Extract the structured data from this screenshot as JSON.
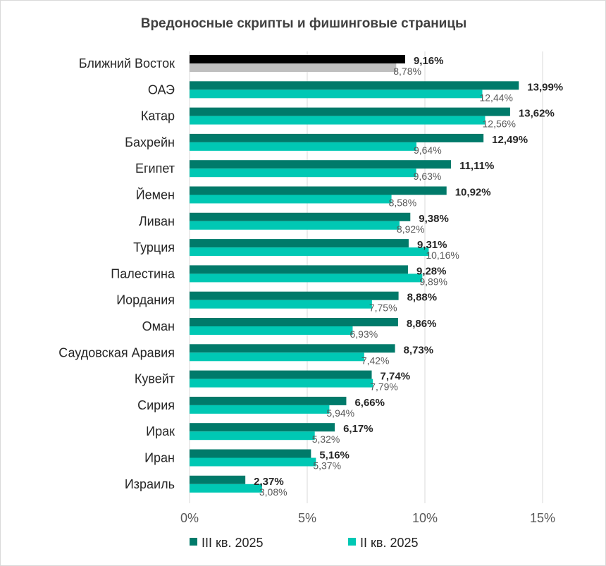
{
  "chart_data": {
    "type": "bar",
    "orientation": "horizontal",
    "title": "Вредоносные скрипты и фишинговые страницы",
    "categories": [
      "Ближний Восток",
      "ОАЭ",
      "Катар",
      "Бахрейн",
      "Египет",
      "Йемен",
      "Ливан",
      "Турция",
      "Палестина",
      "Иордания",
      "Оман",
      "Саудовская Аравия",
      "Кувейт",
      "Сирия",
      "Ирак",
      "Иран",
      "Израиль"
    ],
    "series": [
      {
        "name": "III кв. 2025",
        "color": "#007a6a",
        "values": [
          9.16,
          13.99,
          13.62,
          12.49,
          11.11,
          10.92,
          9.38,
          9.31,
          9.28,
          8.88,
          8.86,
          8.73,
          7.74,
          6.66,
          6.17,
          5.16,
          2.37
        ],
        "labels": [
          "9,16%",
          "13,99%",
          "13,62%",
          "12,49%",
          "11,11%",
          "10,92%",
          "9,38%",
          "9,31%",
          "9,28%",
          "8,88%",
          "8,86%",
          "8,73%",
          "7,74%",
          "6,66%",
          "6,17%",
          "5,16%",
          "2,37%"
        ]
      },
      {
        "name": "II кв. 2025",
        "color": "#00c8b4",
        "values": [
          8.78,
          12.44,
          12.56,
          9.64,
          9.63,
          8.58,
          8.92,
          10.16,
          9.89,
          7.75,
          6.93,
          7.42,
          7.79,
          5.94,
          5.32,
          5.37,
          3.08
        ],
        "labels": [
          "8,78%",
          "12,44%",
          "12,56%",
          "9,64%",
          "9,63%",
          "8,58%",
          "8,92%",
          "10,16%",
          "9,89%",
          "7,75%",
          "6,93%",
          "7,42%",
          "7,79%",
          "5,94%",
          "5,32%",
          "5,37%",
          "3,08%"
        ]
      }
    ],
    "highlight": {
      "category": "Ближний Восток",
      "colors": [
        "#000000",
        "#bfbfbf"
      ]
    },
    "xlim": [
      0,
      15
    ],
    "xticks": [
      0,
      5,
      10,
      15
    ],
    "xtick_labels": [
      "0%",
      "5%",
      "10%",
      "15%"
    ],
    "grid": "vertical",
    "legend": "bottom"
  }
}
